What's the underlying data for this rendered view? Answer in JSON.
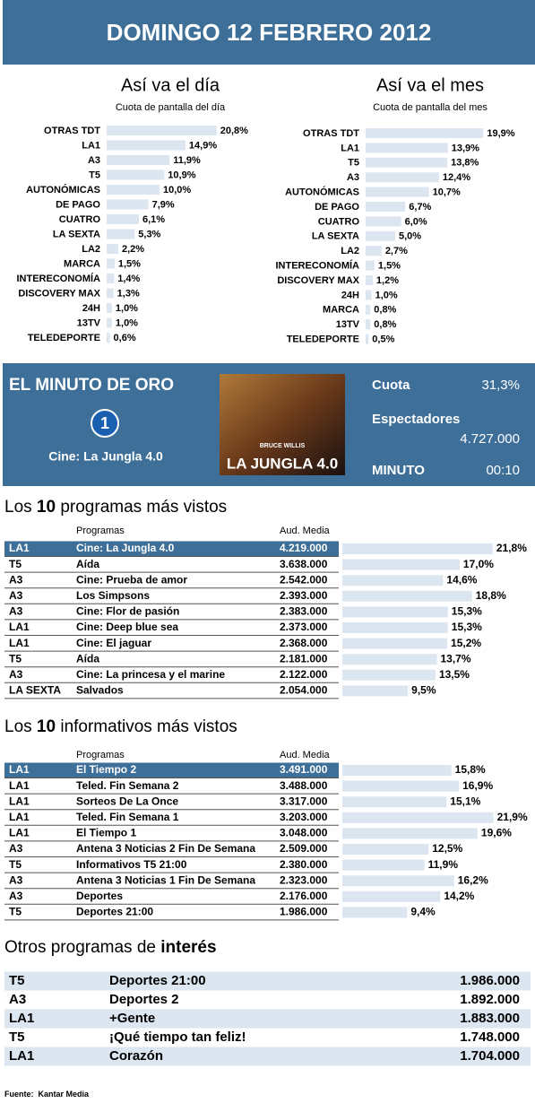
{
  "header": {
    "title": "DOMINGO 12 FEBRERO 2012"
  },
  "day": {
    "title": "Así va el día",
    "subtitle": "Cuota de pantalla del día",
    "categories": [
      "OTRAS TDT",
      "LA1",
      "A3",
      "T5",
      "AUTONÓMICAS",
      "DE PAGO",
      "CUATRO",
      "LA SEXTA",
      "LA2",
      "MARCA",
      "INTERECONOMÍA",
      "DISCOVERY MAX",
      "24H",
      "13TV",
      "TELEDEPORTE"
    ],
    "values": [
      20.8,
      14.9,
      11.9,
      10.9,
      10.0,
      7.9,
      6.1,
      5.3,
      2.2,
      1.5,
      1.4,
      1.3,
      1.0,
      1.0,
      0.6
    ],
    "value_labels": [
      "20,8%",
      "14,9%",
      "11,9%",
      "10,9%",
      "10,0%",
      "7,9%",
      "6,1%",
      "5,3%",
      "2,2%",
      "1,5%",
      "1,4%",
      "1,3%",
      "1,0%",
      "1,0%",
      "0,6%"
    ]
  },
  "month": {
    "title": "Así va el mes",
    "subtitle": "Cuota de pantalla del mes",
    "categories": [
      "OTRAS TDT",
      "LA1",
      "T5",
      "A3",
      "AUTONÓMICAS",
      "DE PAGO",
      "CUATRO",
      "LA SEXTA",
      "LA2",
      "INTERECONOMÍA",
      "DISCOVERY MAX",
      "24H",
      "MARCA",
      "13TV",
      "TELEDEPORTE"
    ],
    "values": [
      19.9,
      13.9,
      13.8,
      12.4,
      10.7,
      6.7,
      6.0,
      5.0,
      2.7,
      1.5,
      1.2,
      1.0,
      0.8,
      0.8,
      0.5
    ],
    "value_labels": [
      "19,9%",
      "13,9%",
      "13,8%",
      "12,4%",
      "10,7%",
      "6,7%",
      "6,0%",
      "5,0%",
      "2,7%",
      "1,5%",
      "1,2%",
      "1,0%",
      "0,8%",
      "0,8%",
      "0,5%"
    ]
  },
  "minuto": {
    "title": "EL MINUTO DE ORO",
    "logo": "1",
    "program": "Cine: La Jungla 4.0",
    "poster_actor": "BRUCE WILLIS",
    "poster_title": "LA JUNGLA 4.0",
    "cuota_label": "Cuota",
    "cuota": "31,3%",
    "espectadores_label": "Espectadores",
    "espectadores": "4.727.000",
    "minuto_label": "MINUTO",
    "minuto": "00:10"
  },
  "programas": {
    "title_pre": "Los ",
    "title_num": "10",
    "title_post": " programas más vistos",
    "col_programs": "Programas",
    "col_audience": "Aud. Media",
    "rows": [
      {
        "channel": "LA1",
        "program": "Cine: La Jungla 4.0",
        "audience": "4.219.000",
        "share": 21.8,
        "share_label": "21,8%"
      },
      {
        "channel": "T5",
        "program": "Aída",
        "audience": "3.638.000",
        "share": 17.0,
        "share_label": "17,0%"
      },
      {
        "channel": "A3",
        "program": "Cine: Prueba de amor",
        "audience": "2.542.000",
        "share": 14.6,
        "share_label": "14,6%"
      },
      {
        "channel": "A3",
        "program": "Los Simpsons",
        "audience": "2.393.000",
        "share": 18.8,
        "share_label": "18,8%"
      },
      {
        "channel": "A3",
        "program": "Cine: Flor de pasión",
        "audience": "2.383.000",
        "share": 15.3,
        "share_label": "15,3%"
      },
      {
        "channel": "LA1",
        "program": "Cine: Deep blue sea",
        "audience": "2.373.000",
        "share": 15.3,
        "share_label": "15,3%"
      },
      {
        "channel": "LA1",
        "program": "Cine: El jaguar",
        "audience": "2.368.000",
        "share": 15.2,
        "share_label": "15,2%"
      },
      {
        "channel": "T5",
        "program": "Aída",
        "audience": "2.181.000",
        "share": 13.7,
        "share_label": "13,7%"
      },
      {
        "channel": "A3",
        "program": "Cine: La princesa y el marine",
        "audience": "2.122.000",
        "share": 13.5,
        "share_label": "13,5%"
      },
      {
        "channel": "LA SEXTA",
        "program": "Salvados",
        "audience": "2.054.000",
        "share": 9.5,
        "share_label": "9,5%"
      }
    ]
  },
  "informativos": {
    "title_pre": "Los ",
    "title_num": "10",
    "title_post": " informativos más vistos",
    "col_programs": "Programas",
    "col_audience": "Aud. Media",
    "rows": [
      {
        "channel": "LA1",
        "program": "El Tiempo 2",
        "audience": "3.491.000",
        "share": 15.8,
        "share_label": "15,8%"
      },
      {
        "channel": "LA1",
        "program": "Teled. Fin Semana 2",
        "audience": "3.488.000",
        "share": 16.9,
        "share_label": "16,9%"
      },
      {
        "channel": "LA1",
        "program": "Sorteos De La Once",
        "audience": "3.317.000",
        "share": 15.1,
        "share_label": "15,1%"
      },
      {
        "channel": "LA1",
        "program": "Teled. Fin Semana 1",
        "audience": "3.203.000",
        "share": 21.9,
        "share_label": "21,9%"
      },
      {
        "channel": "LA1",
        "program": "El Tiempo 1",
        "audience": "3.048.000",
        "share": 19.6,
        "share_label": "19,6%"
      },
      {
        "channel": "A3",
        "program": "Antena 3 Noticias 2 Fin De Semana",
        "audience": "2.509.000",
        "share": 12.5,
        "share_label": "12,5%"
      },
      {
        "channel": "T5",
        "program": "Informativos T5 21:00",
        "audience": "2.380.000",
        "share": 11.9,
        "share_label": "11,9%"
      },
      {
        "channel": "A3",
        "program": "Antena 3 Noticias 1 Fin De Semana",
        "audience": "2.323.000",
        "share": 16.2,
        "share_label": "16,2%"
      },
      {
        "channel": "A3",
        "program": "Deportes",
        "audience": "2.176.000",
        "share": 14.2,
        "share_label": "14,2%"
      },
      {
        "channel": "T5",
        "program": "Deportes 21:00",
        "audience": "1.986.000",
        "share": 9.4,
        "share_label": "9,4%"
      }
    ]
  },
  "otros": {
    "title_pre": "Otros programas de ",
    "title_bold": "interés",
    "rows": [
      {
        "channel": "T5",
        "program": "Deportes 21:00",
        "audience": "1.986.000"
      },
      {
        "channel": "A3",
        "program": "Deportes 2",
        "audience": "1.892.000"
      },
      {
        "channel": "LA1",
        "program": "+Gente",
        "audience": "1.883.000"
      },
      {
        "channel": "T5",
        "program": "¡Qué tiempo tan feliz!",
        "audience": "1.748.000"
      },
      {
        "channel": "LA1",
        "program": "Corazón",
        "audience": "1.704.000"
      }
    ]
  },
  "footer": {
    "label": "Fuente:",
    "source": "Kantar Media"
  }
}
